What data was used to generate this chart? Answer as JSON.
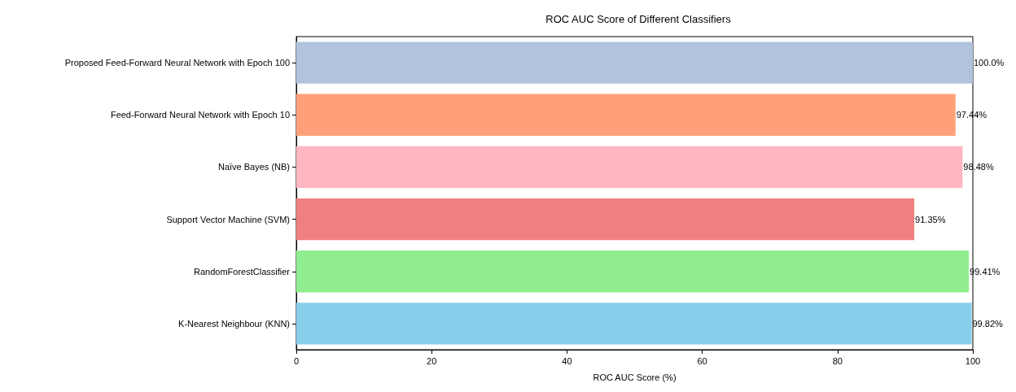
{
  "chart_data": {
    "type": "bar",
    "orientation": "horizontal",
    "title": "ROC AUC Score of Different Classifiers",
    "xlabel": "ROC AUC Score (%)",
    "categories": [
      "Proposed Feed-Forward Neural Network with Epoch 100",
      "Feed-Forward Neural Network with Epoch 10",
      "Naïve Bayes (NB)",
      "Support Vector Machine (SVM)",
      "RandomForestClassifier",
      "K-Nearest Neighbour (KNN)"
    ],
    "values": [
      100.0,
      97.44,
      98.48,
      91.35,
      99.41,
      99.82
    ],
    "colors": [
      "#b0c4de",
      "#ffa07a",
      "#ffb6c1",
      "#f08080",
      "#90ee90",
      "#87ceeb"
    ],
    "value_labels": [
      "100.0%",
      "97.44%",
      "98.48%",
      "91.35%",
      "99.41%",
      "99.82%"
    ],
    "xlim": [
      0,
      100
    ],
    "xticks": [
      0,
      20,
      40,
      60,
      80,
      100
    ],
    "grid": false
  }
}
